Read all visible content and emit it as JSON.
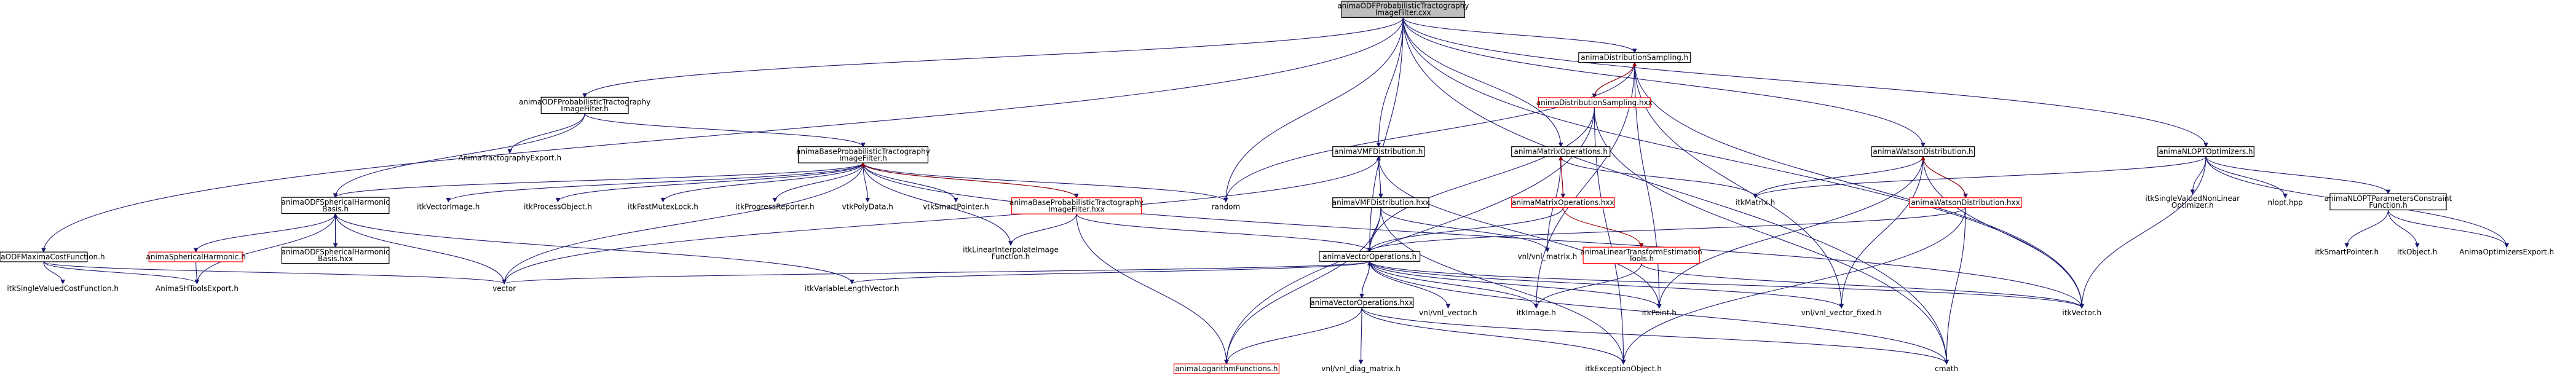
{
  "nodes": [
    {
      "id": "root",
      "label": [
        "animaODFProbabilisticTractography",
        "ImageFilter.cxx"
      ],
      "style": "root"
    },
    {
      "id": "odfptif_h",
      "label": [
        "animaODFProbabilisticTractography",
        "ImageFilter.h"
      ],
      "style": "normal"
    },
    {
      "id": "tractexport",
      "label": [
        "AnimaTractographyExport.h"
      ],
      "style": "external"
    },
    {
      "id": "bptif_h",
      "label": [
        "animaBaseProbabilisticTractography",
        "ImageFilter.h"
      ],
      "style": "normal"
    },
    {
      "id": "odfsh_h",
      "label": [
        "animaODFSphericalHarmonic",
        "Basis.h"
      ],
      "style": "normal"
    },
    {
      "id": "itkvectorimage",
      "label": [
        "itkVectorImage.h"
      ],
      "style": "external"
    },
    {
      "id": "vtkpolydata",
      "label": [
        "vtkPolyData.h"
      ],
      "style": "external"
    },
    {
      "id": "vtksmartpointer",
      "label": [
        "vtkSmartPointer.h"
      ],
      "style": "external"
    },
    {
      "id": "bptif_hxx",
      "label": [
        "animaBaseProbabilisticTractography",
        "ImageFilter.hxx"
      ],
      "style": "red"
    },
    {
      "id": "itkprocessobject",
      "label": [
        "itkProcessObject.h"
      ],
      "style": "external"
    },
    {
      "id": "itkfastmutexlock",
      "label": [
        "itkFastMutexLock.h"
      ],
      "style": "external"
    },
    {
      "id": "itkprogressreporter",
      "label": [
        "itkProgressReporter.h"
      ],
      "style": "external"
    },
    {
      "id": "random",
      "label": [
        "random"
      ],
      "style": "external"
    },
    {
      "id": "itklinearinterp",
      "label": [
        "itkLinearInterpolateImage",
        "Function.h"
      ],
      "style": "external"
    },
    {
      "id": "maxcost_h",
      "label": [
        "animaODFMaximaCostFunction.h"
      ],
      "style": "normal"
    },
    {
      "id": "itksinglevalued",
      "label": [
        "itkSingleValuedCostFunction.h"
      ],
      "style": "external"
    },
    {
      "id": "animash_h",
      "label": [
        "animaSphericalHarmonic.h"
      ],
      "style": "red"
    },
    {
      "id": "odfsh_hxx",
      "label": [
        "animaODFSphericalHarmonic",
        "Basis.hxx"
      ],
      "style": "normal"
    },
    {
      "id": "shtoolsexport",
      "label": [
        "AnimaSHToolsExport.h"
      ],
      "style": "external"
    },
    {
      "id": "vector",
      "label": [
        "vector"
      ],
      "style": "external"
    },
    {
      "id": "itkvarlenvec",
      "label": [
        "itkVariableLengthVector.h"
      ],
      "style": "external"
    },
    {
      "id": "vmf_h",
      "label": [
        "animaVMFDistribution.h"
      ],
      "style": "normal"
    },
    {
      "id": "vmf_hxx",
      "label": [
        "animaVMFDistribution.hxx"
      ],
      "style": "normal"
    },
    {
      "id": "distsamp_h",
      "label": [
        "animaDistributionSampling.h"
      ],
      "style": "normal"
    },
    {
      "id": "distsamp_hxx",
      "label": [
        "animaDistributionSampling.hxx"
      ],
      "style": "red"
    },
    {
      "id": "matrixops_h",
      "label": [
        "animaMatrixOperations.h"
      ],
      "style": "normal"
    },
    {
      "id": "matrixops_hxx",
      "label": [
        "animaMatrixOperations.hxx"
      ],
      "style": "red"
    },
    {
      "id": "lintrans_h",
      "label": [
        "animaLinearTransformEstimation",
        "Tools.h"
      ],
      "style": "red"
    },
    {
      "id": "vnlmatrix",
      "label": [
        "vnl/vnl_matrix.h"
      ],
      "style": "external"
    },
    {
      "id": "vecops_h",
      "label": [
        "animaVectorOperations.h"
      ],
      "style": "normal"
    },
    {
      "id": "vecops_hxx",
      "label": [
        "animaVectorOperations.hxx"
      ],
      "style": "normal"
    },
    {
      "id": "logfunc_h",
      "label": [
        "animaLogarithmFunctions.h"
      ],
      "style": "red"
    },
    {
      "id": "vnldiag",
      "label": [
        "vnl/vnl_diag_matrix.h"
      ],
      "style": "external"
    },
    {
      "id": "vnlvector",
      "label": [
        "vnl/vnl_vector.h"
      ],
      "style": "external"
    },
    {
      "id": "itkimage",
      "label": [
        "itkImage.h"
      ],
      "style": "external"
    },
    {
      "id": "itkpoint",
      "label": [
        "itkPoint.h"
      ],
      "style": "external"
    },
    {
      "id": "itkexception",
      "label": [
        "itkExceptionObject.h"
      ],
      "style": "external"
    },
    {
      "id": "cmath",
      "label": [
        "cmath"
      ],
      "style": "external"
    },
    {
      "id": "vnlvectorfixed",
      "label": [
        "vnl/vnl_vector_fixed.h"
      ],
      "style": "external"
    },
    {
      "id": "itkvector",
      "label": [
        "itkVector.h"
      ],
      "style": "external"
    },
    {
      "id": "itkmatrix",
      "label": [
        "itkMatrix.h"
      ],
      "style": "external"
    },
    {
      "id": "watson_h",
      "label": [
        "animaWatsonDistribution.h"
      ],
      "style": "normal"
    },
    {
      "id": "watson_hxx",
      "label": [
        "animaWatsonDistribution.hxx"
      ],
      "style": "red"
    },
    {
      "id": "nlopt_h",
      "label": [
        "animaNLOPTOptimizers.h"
      ],
      "style": "normal"
    },
    {
      "id": "itksinglevaluednonlin",
      "label": [
        "itkSingleValuedNonLinear",
        "Optimizer.h"
      ],
      "style": "external"
    },
    {
      "id": "nlopthpp",
      "label": [
        "nlopt.hpp"
      ],
      "style": "external"
    },
    {
      "id": "nloptparam",
      "label": [
        "animaNLOPTParametersConstraint",
        "Function.h"
      ],
      "style": "normal"
    },
    {
      "id": "itksmartpointer",
      "label": [
        "itkSmartPointer.h"
      ],
      "style": "external"
    },
    {
      "id": "itkobject",
      "label": [
        "itkObject.h"
      ],
      "style": "external"
    },
    {
      "id": "optexport",
      "label": [
        "AnimaOptimizersExport.h"
      ],
      "style": "external"
    }
  ],
  "edges": [
    {
      "from": "root",
      "to": "odfptif_h"
    },
    {
      "from": "root",
      "to": "maxcost_h"
    },
    {
      "from": "root",
      "to": "random"
    },
    {
      "from": "root",
      "to": "vmf_h"
    },
    {
      "from": "root",
      "to": "distsamp_h"
    },
    {
      "from": "root",
      "to": "matrixops_h"
    },
    {
      "from": "root",
      "to": "vecops_h"
    },
    {
      "from": "root",
      "to": "watson_h"
    },
    {
      "from": "root",
      "to": "nlopt_h"
    },
    {
      "from": "root",
      "to": "itkvector"
    },
    {
      "from": "root",
      "to": "cmath"
    },
    {
      "from": "odfptif_h",
      "to": "tractexport"
    },
    {
      "from": "odfptif_h",
      "to": "bptif_h"
    },
    {
      "from": "odfptif_h",
      "to": "odfsh_h"
    },
    {
      "from": "bptif_h",
      "to": "odfsh_h"
    },
    {
      "from": "bptif_h",
      "to": "itkvectorimage"
    },
    {
      "from": "bptif_h",
      "to": "itkprocessobject"
    },
    {
      "from": "bptif_h",
      "to": "itkfastmutexlock"
    },
    {
      "from": "bptif_h",
      "to": "itkprogressreporter"
    },
    {
      "from": "bptif_h",
      "to": "vtkpolydata"
    },
    {
      "from": "bptif_h",
      "to": "vtksmartpointer"
    },
    {
      "from": "bptif_h",
      "to": "bptif_hxx"
    },
    {
      "from": "bptif_h",
      "to": "random"
    },
    {
      "from": "bptif_h",
      "to": "itklinearinterp"
    },
    {
      "from": "bptif_h",
      "to": "vector"
    },
    {
      "from": "bptif_h",
      "to": "itkvector"
    },
    {
      "from": "bptif_hxx",
      "to": "bptif_h",
      "style": "red"
    },
    {
      "from": "bptif_hxx",
      "to": "itklinearinterp"
    },
    {
      "from": "bptif_hxx",
      "to": "vecops_h"
    },
    {
      "from": "bptif_hxx",
      "to": "logfunc_h"
    },
    {
      "from": "maxcost_h",
      "to": "itksinglevalued"
    },
    {
      "from": "maxcost_h",
      "to": "shtoolsexport"
    },
    {
      "from": "maxcost_h",
      "to": "vector"
    },
    {
      "from": "odfsh_h",
      "to": "animash_h"
    },
    {
      "from": "odfsh_h",
      "to": "odfsh_hxx"
    },
    {
      "from": "odfsh_h",
      "to": "shtoolsexport"
    },
    {
      "from": "odfsh_h",
      "to": "vector"
    },
    {
      "from": "odfsh_h",
      "to": "itkvarlenvec"
    },
    {
      "from": "odfsh_hxx",
      "to": "odfsh_h"
    },
    {
      "from": "animash_h",
      "to": "shtoolsexport"
    },
    {
      "from": "vmf_h",
      "to": "vmf_hxx"
    },
    {
      "from": "vmf_h",
      "to": "vector"
    },
    {
      "from": "vmf_h",
      "to": "itkpoint"
    },
    {
      "from": "vmf_hxx",
      "to": "vmf_h"
    },
    {
      "from": "vmf_hxx",
      "to": "vecops_h"
    },
    {
      "from": "vmf_hxx",
      "to": "logfunc_h"
    },
    {
      "from": "vmf_hxx",
      "to": "vnlmatrix"
    },
    {
      "from": "vmf_hxx",
      "to": "itkexception"
    },
    {
      "from": "distsamp_h",
      "to": "distsamp_hxx"
    },
    {
      "from": "distsamp_h",
      "to": "random"
    },
    {
      "from": "distsamp_h",
      "to": "itkpoint"
    },
    {
      "from": "distsamp_h",
      "to": "vnlvectorfixed"
    },
    {
      "from": "distsamp_h",
      "to": "itkvector"
    },
    {
      "from": "distsamp_h",
      "to": "itkimage"
    },
    {
      "from": "distsamp_hxx",
      "to": "distsamp_h",
      "style": "red"
    },
    {
      "from": "distsamp_hxx",
      "to": "vecops_h"
    },
    {
      "from": "distsamp_hxx",
      "to": "logfunc_h"
    },
    {
      "from": "distsamp_hxx",
      "to": "itkexception"
    },
    {
      "from": "distsamp_hxx",
      "to": "cmath"
    },
    {
      "from": "matrixops_h",
      "to": "matrixops_hxx"
    },
    {
      "from": "matrixops_h",
      "to": "itkmatrix"
    },
    {
      "from": "matrixops_h",
      "to": "vnlmatrix"
    },
    {
      "from": "matrixops_hxx",
      "to": "matrixops_h",
      "style": "red"
    },
    {
      "from": "matrixops_hxx",
      "to": "vecops_h"
    },
    {
      "from": "matrixops_hxx",
      "to": "lintrans_h",
      "style": "red"
    },
    {
      "from": "lintrans_h",
      "to": "itkimage"
    },
    {
      "from": "lintrans_h",
      "to": "itkvector"
    },
    {
      "from": "vecops_h",
      "to": "vecops_hxx"
    },
    {
      "from": "vecops_h",
      "to": "vector"
    },
    {
      "from": "vecops_h",
      "to": "itkvarlenvec"
    },
    {
      "from": "vecops_h",
      "to": "vnlvector"
    },
    {
      "from": "vecops_h",
      "to": "itkpoint"
    },
    {
      "from": "vecops_h",
      "to": "vnlvectorfixed"
    },
    {
      "from": "vecops_h",
      "to": "itkvector"
    },
    {
      "from": "vecops_h",
      "to": "itkimage"
    },
    {
      "from": "vecops_h",
      "to": "cmath"
    },
    {
      "from": "vecops_hxx",
      "to": "vecops_h"
    },
    {
      "from": "vecops_hxx",
      "to": "logfunc_h"
    },
    {
      "from": "vecops_hxx",
      "to": "vnldiag"
    },
    {
      "from": "vecops_hxx",
      "to": "itkexception"
    },
    {
      "from": "vecops_hxx",
      "to": "cmath"
    },
    {
      "from": "watson_h",
      "to": "watson_hxx"
    },
    {
      "from": "watson_h",
      "to": "itkmatrix"
    },
    {
      "from": "watson_h",
      "to": "itkpoint"
    },
    {
      "from": "watson_h",
      "to": "vnlvectorfixed"
    },
    {
      "from": "watson_h",
      "to": "itkvector"
    },
    {
      "from": "watson_hxx",
      "to": "watson_h",
      "style": "red"
    },
    {
      "from": "watson_hxx",
      "to": "vecops_h"
    },
    {
      "from": "watson_hxx",
      "to": "itkexception"
    },
    {
      "from": "watson_hxx",
      "to": "cmath"
    },
    {
      "from": "nlopt_h",
      "to": "itkmatrix"
    },
    {
      "from": "nlopt_h",
      "to": "itksinglevaluednonlin"
    },
    {
      "from": "nlopt_h",
      "to": "nlopthpp"
    },
    {
      "from": "nlopt_h",
      "to": "nloptparam"
    },
    {
      "from": "nlopt_h",
      "to": "optexport"
    },
    {
      "from": "nlopt_h",
      "to": "itkvector"
    },
    {
      "from": "nloptparam",
      "to": "itksmartpointer"
    },
    {
      "from": "nloptparam",
      "to": "itkobject"
    },
    {
      "from": "nloptparam",
      "to": "optexport"
    }
  ],
  "colors": {
    "root_fill": "#bfbfbf",
    "root_stroke": "#000000",
    "normal_fill": "#ffffff",
    "normal_stroke": "#000000",
    "red_fill": "#ffffff",
    "red_stroke": "#ff0000",
    "external_text": "#666666",
    "edge": "#191970",
    "edge_red": "#9a0000"
  }
}
